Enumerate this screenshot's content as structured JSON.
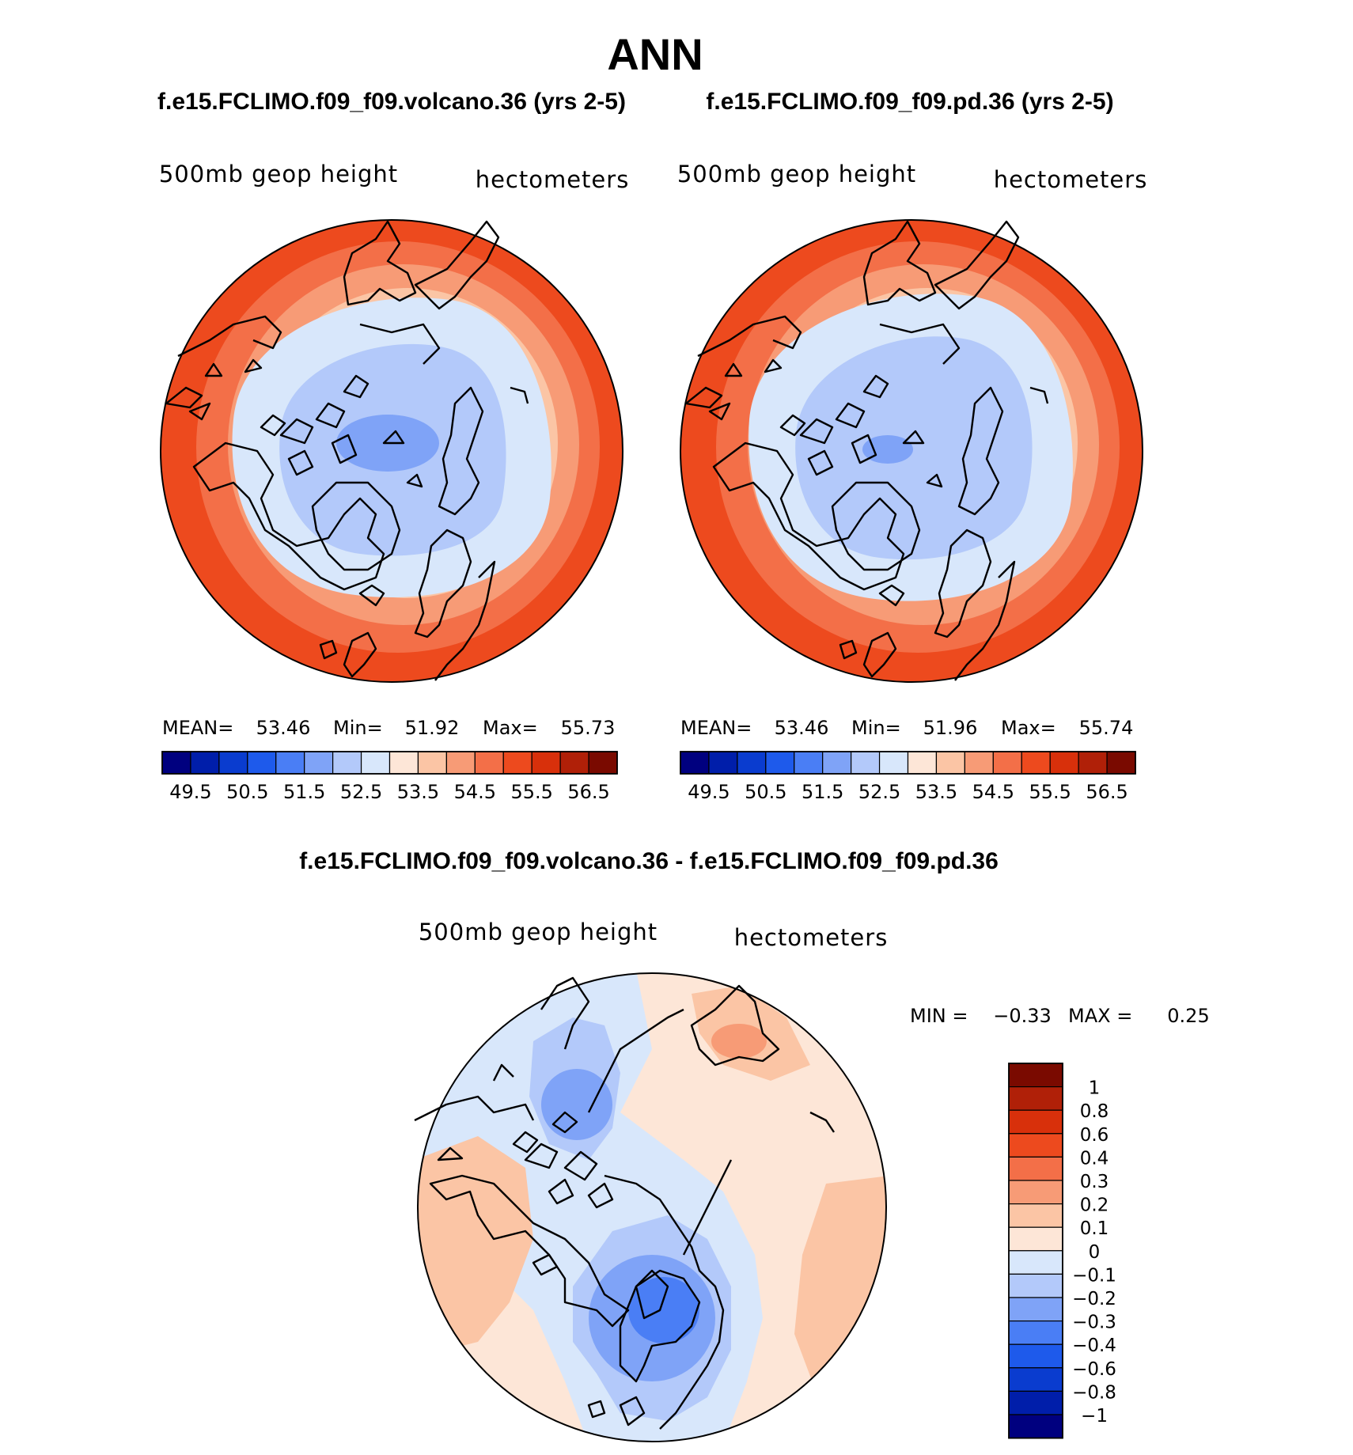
{
  "figure": {
    "title": "ANN",
    "colors": {
      "abs_scale": [
        "#00007f",
        "#001eaa",
        "#0a3ccf",
        "#1e5aeb",
        "#4a7ef5",
        "#7fa3f7",
        "#b3c9fa",
        "#d8e7fb",
        "#fde6d7",
        "#fbc5a5",
        "#f79b76",
        "#f36f48",
        "#ed4a1e",
        "#d8300b",
        "#b02008",
        "#7a0a00"
      ],
      "diff_scale": [
        "#7a0a00",
        "#b02008",
        "#d8300b",
        "#ed4a1e",
        "#f36f48",
        "#f79b76",
        "#fbc5a5",
        "#fde6d7",
        "#d8e7fb",
        "#b3c9fa",
        "#7fa3f7",
        "#4a7ef5",
        "#1e5aeb",
        "#0a3ccf",
        "#001eaa",
        "#00007f"
      ],
      "coast": "#000000"
    }
  },
  "chart_data": [
    {
      "type": "heatmap",
      "projection": "north polar stereographic",
      "title": "f.e15.FCLIMO.f09_f09.volcano.36 (yrs 2-5)",
      "field": "500mb geop height",
      "units": "hectometers",
      "stats": {
        "mean_label": "MEAN=",
        "mean": "53.46",
        "min_label": "Min=",
        "min": "51.92",
        "max_label": "Max=",
        "max": "55.73"
      },
      "colorbar_ticks": [
        "49.5",
        "50.5",
        "51.5",
        "52.5",
        "53.5",
        "54.5",
        "55.5",
        "56.5"
      ],
      "levels": [
        49.5,
        50,
        50.5,
        51,
        51.5,
        52,
        52.5,
        53,
        53.5,
        54,
        54.5,
        55,
        55.5,
        56,
        56.5
      ]
    },
    {
      "type": "heatmap",
      "projection": "north polar stereographic",
      "title": "f.e15.FCLIMO.f09_f09.pd.36 (yrs 2-5)",
      "field": "500mb geop height",
      "units": "hectometers",
      "stats": {
        "mean_label": "MEAN=",
        "mean": "53.46",
        "min_label": "Min=",
        "min": "51.96",
        "max_label": "Max=",
        "max": "55.74"
      },
      "colorbar_ticks": [
        "49.5",
        "50.5",
        "51.5",
        "52.5",
        "53.5",
        "54.5",
        "55.5",
        "56.5"
      ],
      "levels": [
        49.5,
        50,
        50.5,
        51,
        51.5,
        52,
        52.5,
        53,
        53.5,
        54,
        54.5,
        55,
        55.5,
        56,
        56.5
      ]
    },
    {
      "type": "heatmap",
      "projection": "north polar stereographic",
      "title": "f.e15.FCLIMO.f09_f09.volcano.36 - f.e15.FCLIMO.f09_f09.pd.36",
      "field": "500mb geop height",
      "units": "hectometers",
      "stats": {
        "min_label": "MIN =",
        "min": "−0.33",
        "max_label": "MAX =",
        "max": "0.25"
      },
      "colorbar_ticks": [
        "1",
        "0.8",
        "0.6",
        "0.4",
        "0.3",
        "0.2",
        "0.1",
        "0",
        "−0.1",
        "−0.2",
        "−0.3",
        "−0.4",
        "−0.6",
        "−0.8",
        "−1"
      ],
      "levels": [
        1,
        0.8,
        0.6,
        0.4,
        0.3,
        0.2,
        0.1,
        0,
        -0.1,
        -0.2,
        -0.3,
        -0.4,
        -0.6,
        -0.8,
        -1
      ]
    }
  ]
}
